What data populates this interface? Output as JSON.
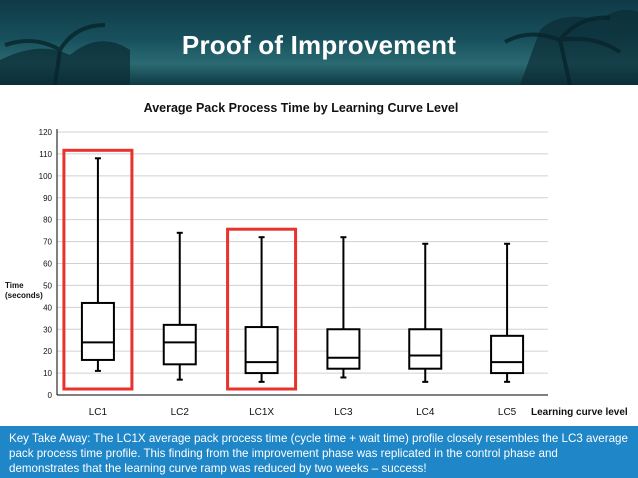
{
  "slide": {
    "title": "Proof of Improvement",
    "footer_text": "Key Take Away: The LC1X average pack process time (cycle time + wait time) profile closely resembles the LC3 average pack process time profile. This finding from the improvement phase was replicated in the control phase and demonstrates that the learning curve ramp was reduced by two weeks – success!"
  },
  "colors": {
    "header_bg": "#17505c",
    "footer_bg": "#1f86c8",
    "highlight_box": "#e8322c",
    "box_stroke": "#000000",
    "gridline": "#d0d0d0"
  },
  "chart_data": {
    "type": "boxplot",
    "title": "Average Pack Process Time by Learning Curve Level",
    "xlabel": "Learning curve level",
    "ylabel": [
      "Time",
      "(seconds)"
    ],
    "ylim": [
      0,
      120
    ],
    "yticks": [
      0,
      10,
      20,
      30,
      40,
      50,
      60,
      70,
      80,
      90,
      100,
      110,
      120
    ],
    "grid": true,
    "categories": [
      "LC1",
      "LC2",
      "LC1X",
      "LC3",
      "LC4",
      "LC5"
    ],
    "series": [
      {
        "values": [
          {
            "min": 11,
            "q1": 16,
            "median": 24,
            "q3": 42,
            "max": 108
          },
          {
            "min": 7,
            "q1": 14,
            "median": 24,
            "q3": 32,
            "max": 74
          },
          {
            "min": 6,
            "q1": 10,
            "median": 15,
            "q3": 31,
            "max": 72
          },
          {
            "min": 8,
            "q1": 12,
            "median": 17,
            "q3": 30,
            "max": 72
          },
          {
            "min": 6,
            "q1": 12,
            "median": 18,
            "q3": 30,
            "max": 69
          },
          {
            "min": 6,
            "q1": 10,
            "median": 15,
            "q3": 27,
            "max": 69
          }
        ]
      }
    ],
    "highlighted_categories": [
      "LC1",
      "LC1X"
    ]
  }
}
